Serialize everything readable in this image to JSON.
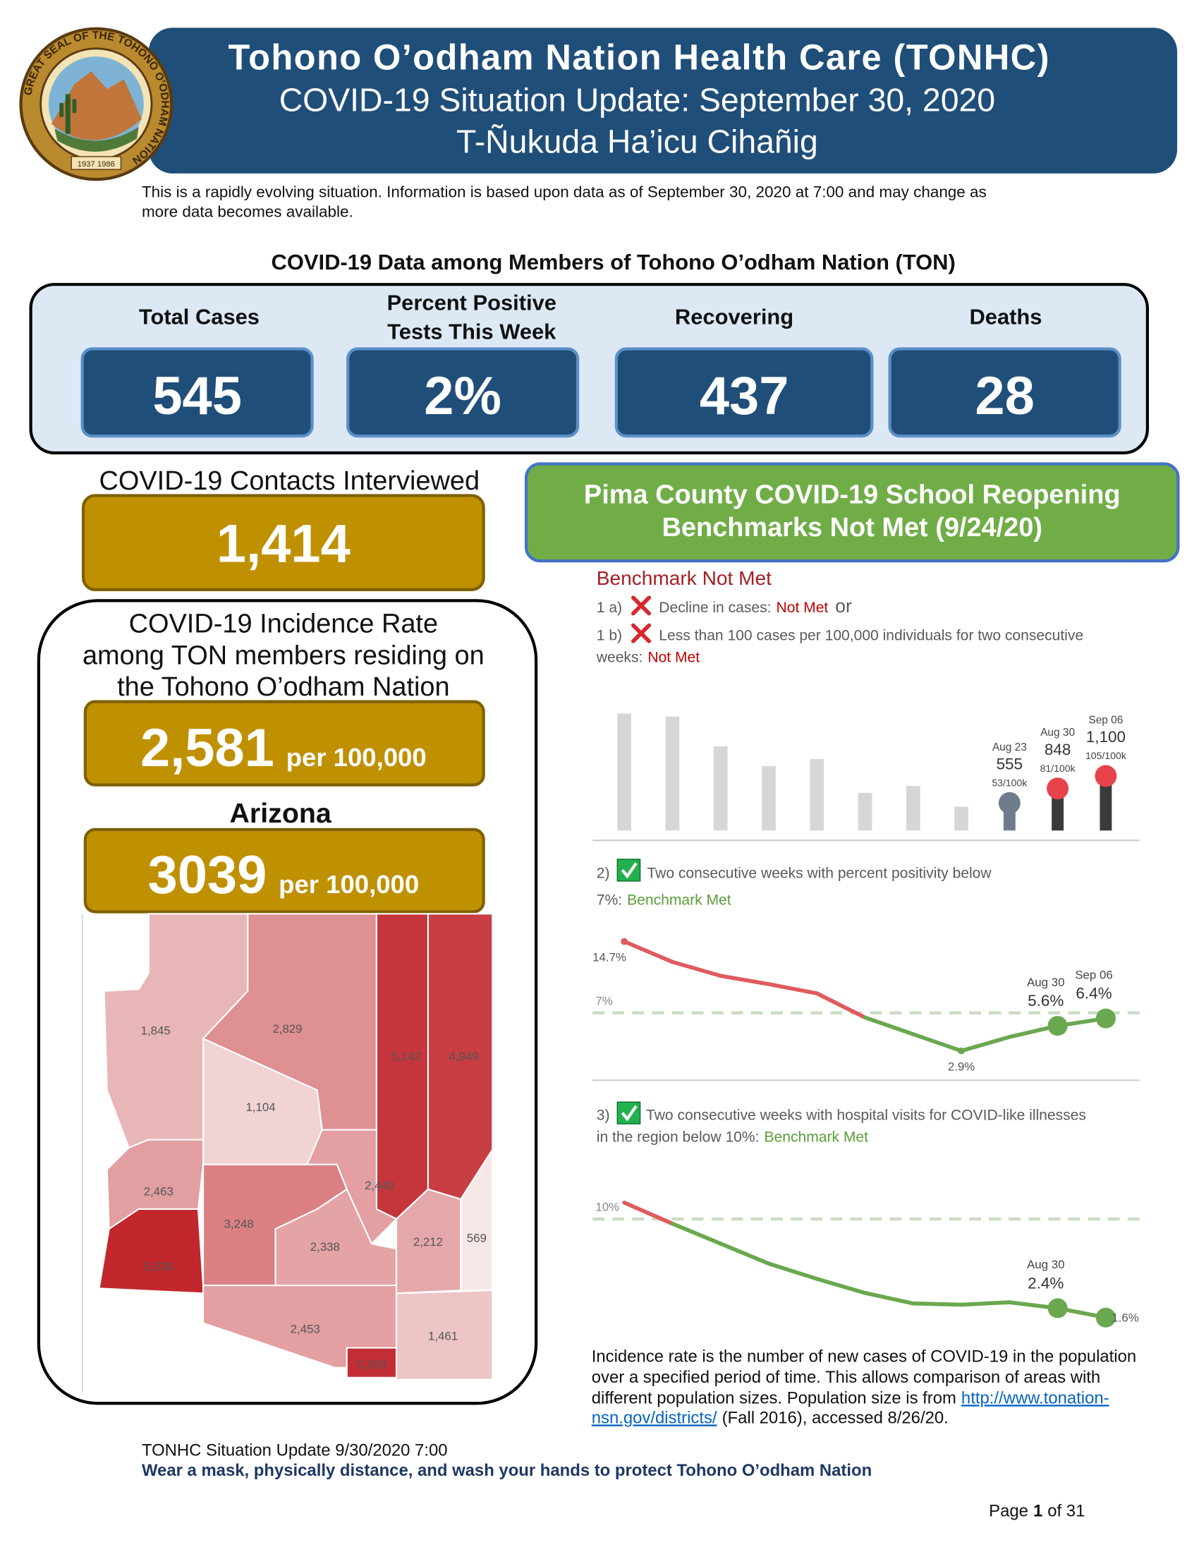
{
  "seal": {
    "ring": "GREAT SEAL OF THE TOHONO O'ODHAM NATION",
    "years": "1937 1986"
  },
  "header": {
    "title": "Tohono O’odham Nation Health Care (TONHC)",
    "subtitle": "COVID-19 Situation Update: September 30, 2020",
    "subtitle2": "T-Ñukuda Ha’icu Cihañig"
  },
  "disclaimer": [
    "This is a rapidly evolving situation. Information is based upon data as of September 30, 2020 at 7:00 and may change as",
    "more data becomes available."
  ],
  "ton_data": {
    "heading": "COVID-19 Data among Members of Tohono O’odham Nation (TON)",
    "stats": [
      {
        "label": [
          "Total Cases"
        ],
        "value": "545"
      },
      {
        "label": [
          "Percent Positive",
          "Tests This Week"
        ],
        "value": "2%"
      },
      {
        "label": [
          "Recovering"
        ],
        "value": "437"
      },
      {
        "label": [
          "Deaths"
        ],
        "value": "28"
      }
    ]
  },
  "contacts": {
    "heading": "COVID-19 Contacts Interviewed",
    "value": "1,414"
  },
  "incidence": {
    "heading": [
      "COVID-19 Incidence Rate",
      "among TON members residing on",
      "the Tohono O’odham Nation"
    ],
    "value": "2,581",
    "unit": "per 100,000"
  },
  "arizona": {
    "heading": "Arizona",
    "value": "3039",
    "unit": "per 100,000"
  },
  "map": {
    "counties": [
      {
        "value": 1845,
        "label": "1,845"
      },
      {
        "value": 2829,
        "label": "2,829"
      },
      {
        "value": 5142,
        "label": "5,142"
      },
      {
        "value": 4949,
        "label": "4,949"
      },
      {
        "value": 1104,
        "label": "1,104"
      },
      {
        "value": 2463,
        "label": "2,463"
      },
      {
        "value": 2440,
        "label": "2,440"
      },
      {
        "value": 3248,
        "label": "3,248"
      },
      {
        "value": 2338,
        "label": "2,338"
      },
      {
        "value": 2212,
        "label": "2,212"
      },
      {
        "value": 569,
        "label": "569"
      },
      {
        "value": 5536,
        "label": "5,536"
      },
      {
        "value": 2453,
        "label": "2,453"
      },
      {
        "value": 1461,
        "label": "1,461"
      },
      {
        "value": 5359,
        "label": "5,359"
      }
    ],
    "color_low": "#f7e8e8",
    "color_high": "#c1272d"
  },
  "benchmarks": {
    "banner": [
      "Pima County COVID-19 School Reopening",
      "Benchmarks Not Met (9/24/20)"
    ],
    "status": "Benchmark Not Met",
    "items": [
      {
        "num": "1 a)",
        "text": [
          "Decline in cases:"
        ],
        "result": "Not Met",
        "tail": "or"
      },
      {
        "num": "1 b)",
        "text": [
          "Less than 100 cases per 100,000 individuals for two consecutive",
          "weeks:"
        ],
        "result": "Not Met"
      },
      {
        "num": "2)",
        "text": [
          "Two consecutive weeks with percent positivity below",
          "7%:"
        ],
        "result": "Benchmark Met"
      },
      {
        "num": "3)",
        "text": [
          "Two consecutive weeks with hospital visits for COVID-like illnesses",
          "in the region below 10%:"
        ],
        "result": "Benchmark Met"
      }
    ]
  },
  "chart_data": [
    {
      "type": "bar",
      "categories": [
        null,
        null,
        null,
        null,
        null,
        null,
        null,
        null,
        "Aug 23",
        "Aug 30",
        "Sep 06"
      ],
      "values": [
        2360,
        2300,
        1700,
        1300,
        1440,
        760,
        900,
        480,
        555,
        848,
        1100
      ],
      "value_labels": [
        null,
        null,
        null,
        null,
        null,
        null,
        null,
        null,
        "555",
        "848",
        "1,100"
      ],
      "rate_labels": [
        null,
        null,
        null,
        null,
        null,
        null,
        null,
        null,
        "53/100k",
        "81/100k",
        "105/100k"
      ],
      "colors": [
        "#d6d6d6",
        "#d6d6d6",
        "#d6d6d6",
        "#d6d6d6",
        "#d6d6d6",
        "#d6d6d6",
        "#d6d6d6",
        "#d6d6d6",
        "#6f7c8c",
        "#e8434b",
        "#e8434b"
      ]
    },
    {
      "type": "line",
      "categories": [
        null,
        null,
        null,
        null,
        null,
        null,
        null,
        null,
        null,
        "Aug 30",
        "Sep 06"
      ],
      "values": [
        14.7,
        12.5,
        11,
        10.1,
        9.1,
        6.5,
        4.7,
        2.9,
        4.4,
        5.6,
        6.4
      ],
      "value_labels": [
        "14.7%",
        null,
        null,
        null,
        null,
        null,
        null,
        "2.9%",
        null,
        "5.6%",
        "6.4%"
      ],
      "threshold": {
        "value": 7,
        "label": "7%"
      },
      "color_above": "#e05a5e",
      "color_below": "#6aa84f"
    },
    {
      "type": "line",
      "categories": [
        null,
        null,
        null,
        null,
        null,
        null,
        null,
        null,
        null,
        "Aug 30",
        null
      ],
      "values": [
        11.4,
        9.6,
        7.9,
        6.2,
        4.9,
        3.7,
        2.8,
        2.7,
        2.9,
        2.4,
        1.6
      ],
      "value_labels": [
        null,
        null,
        null,
        null,
        null,
        null,
        null,
        null,
        null,
        "2.4%",
        "1.6%"
      ],
      "threshold": {
        "value": 10,
        "label": "10%"
      },
      "color_above": "#e05a5e",
      "color_below": "#6aa84f"
    }
  ],
  "footnote": {
    "lines": [
      "Incidence rate is the number of new cases of COVID-19 in the population",
      "over a specified period of time. This allows comparison of areas with",
      "different population sizes. Population size is from"
    ],
    "link": [
      "http://www.tonation-",
      "nsn.gov/districts/"
    ],
    "tail": "(Fall 2016), accessed 8/26/20."
  },
  "footer": {
    "line1": "TONHC Situation Update 9/30/2020 7:00",
    "line2": "Wear a mask, physically distance, and wash your hands to protect Tohono O’odham Nation",
    "page": {
      "prefix": "Page",
      "number": "1",
      "suffix": "of 31"
    }
  }
}
